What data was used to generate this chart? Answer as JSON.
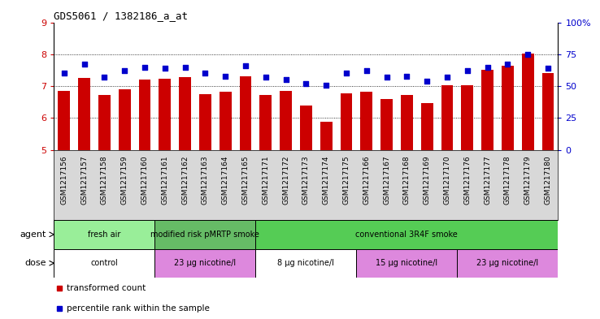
{
  "title": "GDS5061 / 1382186_a_at",
  "samples": [
    "GSM1217156",
    "GSM1217157",
    "GSM1217158",
    "GSM1217159",
    "GSM1217160",
    "GSM1217161",
    "GSM1217162",
    "GSM1217163",
    "GSM1217164",
    "GSM1217165",
    "GSM1217171",
    "GSM1217172",
    "GSM1217173",
    "GSM1217174",
    "GSM1217175",
    "GSM1217166",
    "GSM1217167",
    "GSM1217168",
    "GSM1217169",
    "GSM1217170",
    "GSM1217176",
    "GSM1217177",
    "GSM1217178",
    "GSM1217179",
    "GSM1217180"
  ],
  "transformed_count": [
    6.85,
    7.25,
    6.72,
    6.9,
    7.2,
    7.23,
    7.28,
    6.75,
    6.82,
    7.3,
    6.72,
    6.85,
    6.4,
    5.88,
    6.78,
    6.82,
    6.6,
    6.72,
    6.48,
    7.02,
    7.02,
    7.5,
    7.65,
    8.02,
    7.4
  ],
  "percentile_rank": [
    60,
    67,
    57,
    62,
    65,
    64,
    65,
    60,
    58,
    66,
    57,
    55,
    52,
    51,
    60,
    62,
    57,
    58,
    54,
    57,
    62,
    65,
    67,
    75,
    64
  ],
  "ylim_left": [
    5,
    9
  ],
  "ylim_right": [
    0,
    100
  ],
  "yticks_left": [
    5,
    6,
    7,
    8,
    9
  ],
  "yticks_right": [
    0,
    25,
    50,
    75,
    100
  ],
  "bar_color": "#cc0000",
  "dot_color": "#0000cc",
  "agent_groups": [
    {
      "label": "fresh air",
      "start": 0,
      "end": 5,
      "color": "#99ee99"
    },
    {
      "label": "modified risk pMRTP smoke",
      "start": 5,
      "end": 10,
      "color": "#66bb66"
    },
    {
      "label": "conventional 3R4F smoke",
      "start": 10,
      "end": 25,
      "color": "#55cc55"
    }
  ],
  "dose_groups": [
    {
      "label": "control",
      "start": 0,
      "end": 5,
      "color": "#ffffff"
    },
    {
      "label": "23 μg nicotine/l",
      "start": 5,
      "end": 10,
      "color": "#dd88dd"
    },
    {
      "label": "8 μg nicotine/l",
      "start": 10,
      "end": 15,
      "color": "#ffffff"
    },
    {
      "label": "15 μg nicotine/l",
      "start": 15,
      "end": 20,
      "color": "#dd88dd"
    },
    {
      "label": "23 μg nicotine/l",
      "start": 20,
      "end": 25,
      "color": "#dd88dd"
    }
  ],
  "legend_items": [
    {
      "label": "transformed count",
      "color": "#cc0000"
    },
    {
      "label": "percentile rank within the sample",
      "color": "#0000cc"
    }
  ],
  "plot_bg_color": "#ffffff",
  "tick_label_area_color": "#d8d8d8",
  "agent_row_label": "agent",
  "dose_row_label": "dose",
  "n_samples": 25
}
